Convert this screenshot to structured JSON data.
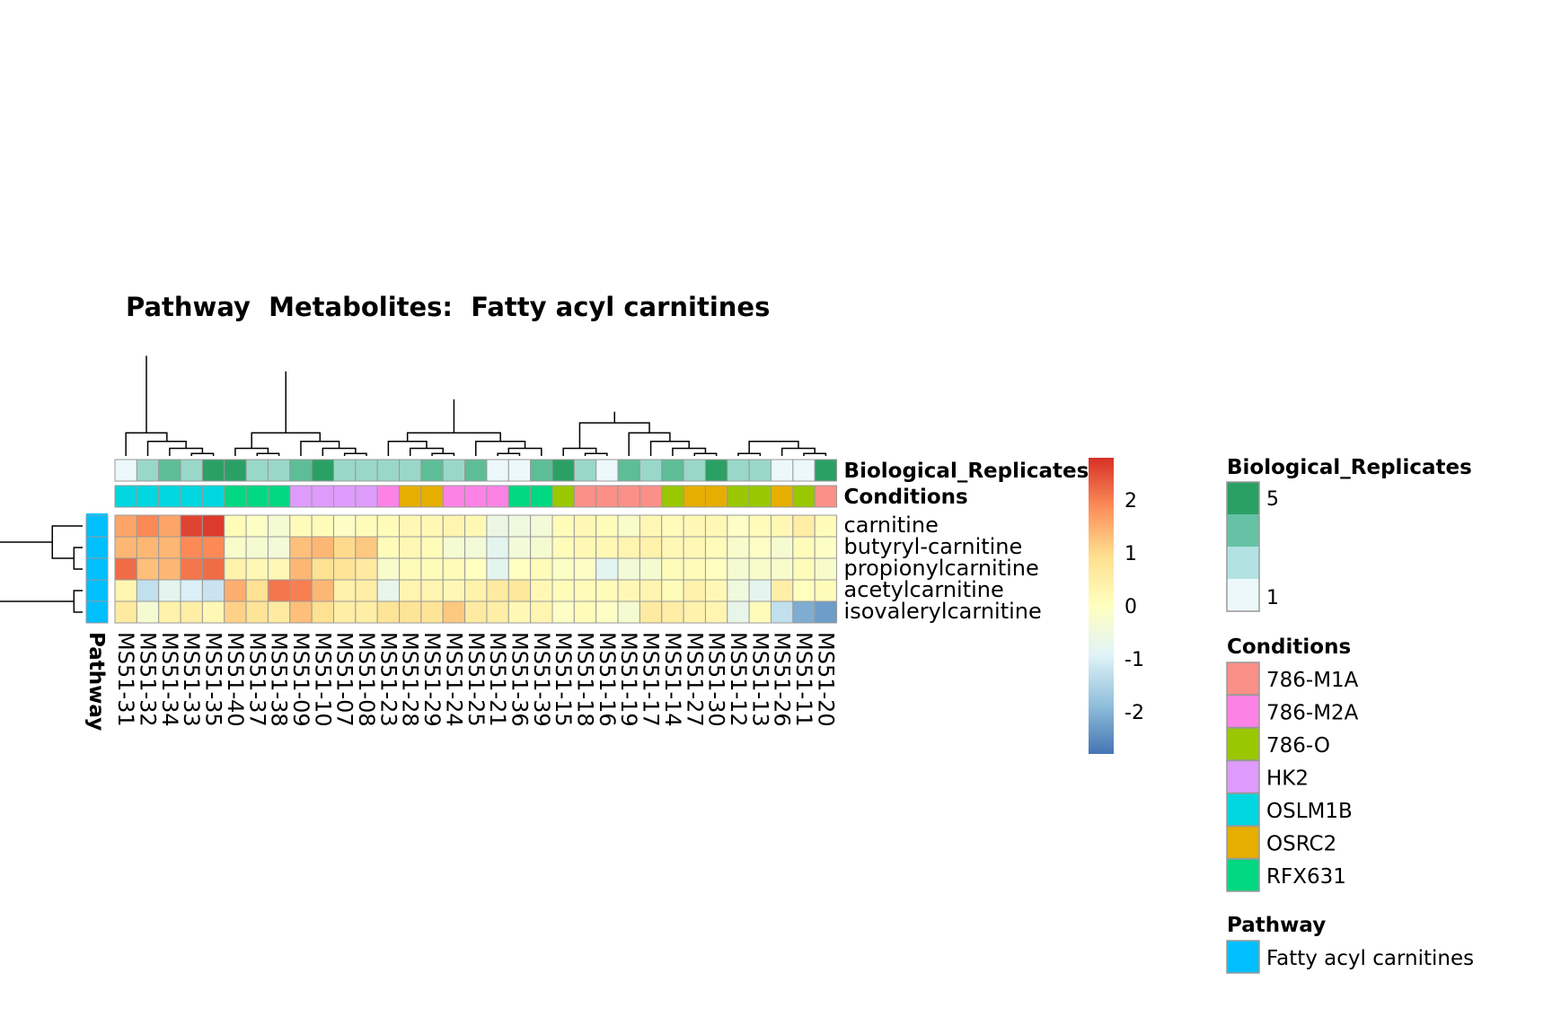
{
  "chart_data": {
    "type": "heatmap",
    "title": "Pathway  Metabolites:  Fatty acyl carnitines",
    "samples": [
      "MS51-31",
      "MS51-32",
      "MS51-34",
      "MS51-33",
      "MS51-35",
      "MS51-40",
      "MS51-37",
      "MS51-38",
      "MS51-09",
      "MS51-10",
      "MS51-07",
      "MS51-08",
      "MS51-23",
      "MS51-28",
      "MS51-29",
      "MS51-24",
      "MS51-25",
      "MS51-21",
      "MS51-36",
      "MS51-39",
      "MS51-15",
      "MS51-18",
      "MS51-16",
      "MS51-19",
      "MS51-17",
      "MS51-14",
      "MS51-27",
      "MS51-30",
      "MS51-12",
      "MS51-13",
      "MS51-26",
      "MS51-11",
      "MS51-20"
    ],
    "metabolites": [
      "carnitine",
      "butyryl-carnitine",
      "propionylcarnitine",
      "acetylcarnitine",
      "isovalerylcarnitine"
    ],
    "values": [
      [
        1.6,
        1.9,
        1.6,
        2.6,
        2.7,
        0.1,
        -0.1,
        -0.3,
        0.1,
        0.1,
        -0.1,
        0.1,
        0.1,
        0.2,
        0.2,
        0.3,
        0.2,
        -0.6,
        -0.5,
        -0.4,
        0.1,
        0.2,
        0.1,
        -0.2,
        0.2,
        0.1,
        0.2,
        0.2,
        -0.1,
        0.1,
        0.2,
        0.5,
        0.1
      ],
      [
        1.4,
        1.4,
        1.4,
        1.9,
        1.9,
        -0.2,
        -0.3,
        -0.4,
        1.3,
        1.4,
        1.0,
        1.2,
        0.1,
        0.2,
        0.1,
        -0.3,
        -0.4,
        -0.8,
        -0.4,
        -0.3,
        0.1,
        0.2,
        0.2,
        0.3,
        0.4,
        0.2,
        0.2,
        0.1,
        -0.2,
        -0.1,
        -0.3,
        0.1,
        -0.1
      ],
      [
        2.2,
        1.3,
        1.4,
        2.1,
        2.2,
        0.4,
        0.2,
        0.2,
        1.4,
        0.9,
        0.8,
        0.6,
        -0.2,
        0.1,
        0.1,
        0.1,
        0.0,
        -0.8,
        0.0,
        0.1,
        -0.1,
        -0.1,
        -0.8,
        -0.4,
        -0.3,
        0.1,
        0.1,
        0.0,
        -0.3,
        -0.2,
        -0.2,
        0.1,
        -0.2
      ],
      [
        0.3,
        -1.3,
        -0.8,
        -1.0,
        -1.2,
        1.5,
        0.9,
        2.1,
        2.0,
        1.4,
        0.4,
        0.5,
        -0.7,
        0.3,
        0.3,
        0.2,
        0.4,
        0.6,
        0.7,
        0.2,
        0.1,
        0.1,
        0.1,
        0.2,
        0.3,
        0.1,
        0.4,
        0.2,
        -0.5,
        -0.8,
        0.5,
        0.0,
        0.1
      ],
      [
        0.6,
        -0.3,
        0.4,
        0.5,
        0.2,
        1.1,
        0.8,
        0.6,
        1.3,
        0.9,
        0.5,
        0.5,
        0.8,
        0.8,
        0.8,
        1.2,
        0.6,
        0.5,
        0.2,
        0.3,
        -0.1,
        0.1,
        -0.1,
        -0.3,
        0.6,
        0.5,
        0.4,
        0.3,
        -0.7,
        0.1,
        -1.3,
        -2.1,
        -2.3
      ]
    ],
    "column_annotations": {
      "Biological_Replicates": [
        1,
        2,
        3,
        2,
        5,
        5,
        2,
        2,
        3,
        5,
        2,
        2,
        2,
        2,
        3,
        2,
        3,
        1,
        1,
        3,
        5,
        2,
        1,
        3,
        2,
        3,
        2,
        5,
        2,
        2,
        1,
        1,
        5
      ],
      "Conditions": [
        "OSLM1B",
        "OSLM1B",
        "OSLM1B",
        "OSLM1B",
        "OSLM1B",
        "RFX631",
        "RFX631",
        "RFX631",
        "HK2",
        "HK2",
        "HK2",
        "HK2",
        "786-M2A",
        "OSRC2",
        "OSRC2",
        "786-M2A",
        "786-M2A",
        "786-M2A",
        "RFX631",
        "RFX631",
        "786-O",
        "786-M1A",
        "786-M1A",
        "786-M1A",
        "786-M1A",
        "786-O",
        "OSRC2",
        "OSRC2",
        "786-O",
        "786-O",
        "OSRC2",
        "786-O",
        "786-M1A"
      ]
    },
    "row_annotation_label": "Pathway",
    "row_annotations": [
      "Fatty acyl carnitines",
      "Fatty acyl carnitines",
      "Fatty acyl carnitines",
      "Fatty acyl carnitines",
      "Fatty acyl carnitines"
    ],
    "annotation_labels": [
      "Biological_Replicates",
      "Conditions"
    ],
    "color_scale": {
      "range": [
        -2.8,
        2.8
      ],
      "ticks": [
        2,
        1,
        0,
        -1,
        -2
      ],
      "tick_labels": [
        "2",
        "1",
        "0",
        "-1",
        "-2"
      ],
      "colors": [
        "#4575B4",
        "#91BFDB",
        "#E0F3F8",
        "#FFFFBF",
        "#FEE090",
        "#FC8D59",
        "#D73027"
      ]
    },
    "legends": {
      "biological_replicates": {
        "title": "Biological_Replicates",
        "labels": [
          "5",
          "1"
        ],
        "colors": [
          "#2BA065",
          "#66C2A5",
          "#B2E2E2",
          "#EDF8FB"
        ]
      },
      "conditions": {
        "title": "Conditions",
        "items": [
          {
            "label": "786-M1A",
            "color": "#FB9088"
          },
          {
            "label": "786-M2A",
            "color": "#FC82E6"
          },
          {
            "label": "786-O",
            "color": "#99C800"
          },
          {
            "label": "HK2",
            "color": "#DE9BFB"
          },
          {
            "label": "OSLM1B",
            "color": "#00D7E0"
          },
          {
            "label": "OSRC2",
            "color": "#E5AE00"
          },
          {
            "label": "RFX631",
            "color": "#00D882"
          }
        ]
      },
      "pathway": {
        "title": "Pathway",
        "items": [
          {
            "label": "Fatty acyl carnitines",
            "color": "#00BFFF"
          }
        ]
      }
    },
    "biological_replicate_colors": {
      "1": "#EDF8FB",
      "2": "#99D8C9",
      "3": "#5DBD97",
      "5": "#2BA065"
    }
  }
}
